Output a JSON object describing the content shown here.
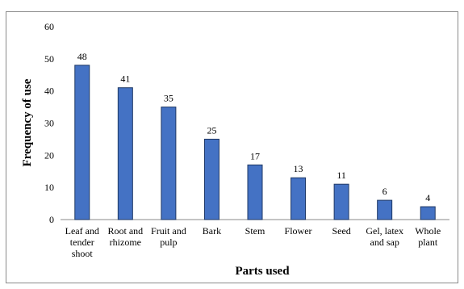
{
  "chart_data": {
    "type": "bar",
    "categories": [
      [
        "Leaf and",
        "tender",
        "shoot"
      ],
      [
        "Root and",
        "rhizome"
      ],
      [
        "Fruit and",
        "pulp"
      ],
      [
        "Bark"
      ],
      [
        "Stem"
      ],
      [
        "Flower"
      ],
      [
        "Seed"
      ],
      [
        "Gel, latex",
        "and sap"
      ],
      [
        "Whole",
        "plant"
      ]
    ],
    "values": [
      48,
      41,
      35,
      25,
      17,
      13,
      11,
      6,
      4
    ],
    "xlabel": "Parts used",
    "ylabel": "Frequency of use",
    "ylim": [
      0,
      60
    ],
    "yticks": [
      0,
      10,
      20,
      30,
      40,
      50,
      60
    ],
    "grid": false,
    "bar_color": "#4472C4",
    "bar_edge_color": "#1F3864"
  }
}
